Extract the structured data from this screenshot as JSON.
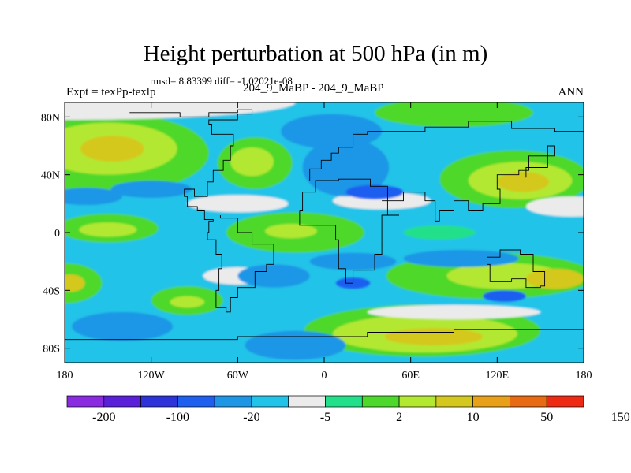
{
  "chart_data": {
    "type": "heatmap",
    "title": "Height perturbation at 500 hPa (in m)",
    "stats_line": "rmsd= 8.83399 diff= -1.02021e-08",
    "left_label": "Expt = texPp-texlp",
    "center_label": "204_9_MaBP - 204_9_MaBP",
    "right_label": "ANN",
    "x_range": [
      -180,
      180
    ],
    "y_range": [
      -90,
      90
    ],
    "x_ticks": [
      {
        "value": -180,
        "label": "180"
      },
      {
        "value": -120,
        "label": "120W"
      },
      {
        "value": -60,
        "label": "60W"
      },
      {
        "value": 0,
        "label": "0"
      },
      {
        "value": 60,
        "label": "60E"
      },
      {
        "value": 120,
        "label": "120E"
      },
      {
        "value": 180,
        "label": "180"
      }
    ],
    "y_ticks": [
      {
        "value": 80,
        "label": "80N"
      },
      {
        "value": 40,
        "label": "40N"
      },
      {
        "value": 0,
        "label": "0"
      },
      {
        "value": -40,
        "label": "40S"
      },
      {
        "value": -80,
        "label": "80S"
      }
    ],
    "colorbar": {
      "bins": [
        {
          "color": "#8a2be2"
        },
        {
          "color": "#5a1fd8"
        },
        {
          "color": "#2d33d8"
        },
        {
          "color": "#1f5ff0"
        },
        {
          "color": "#1e96e6"
        },
        {
          "color": "#22c3e8"
        },
        {
          "color": "#ebebeb"
        },
        {
          "color": "#22e08a"
        },
        {
          "color": "#4ed82c"
        },
        {
          "color": "#b2e830"
        },
        {
          "color": "#d4c81e"
        },
        {
          "color": "#e8a018"
        },
        {
          "color": "#e86a12"
        },
        {
          "color": "#ee2a14"
        }
      ],
      "labels": [
        {
          "boundary": 1,
          "text": "-200"
        },
        {
          "boundary": 3,
          "text": "-100"
        },
        {
          "boundary": 5,
          "text": "-20"
        },
        {
          "boundary": 7,
          "text": "-5"
        },
        {
          "boundary": 9,
          "text": "2"
        },
        {
          "boundary": 11,
          "text": "10"
        },
        {
          "boundary": 13,
          "text": "50"
        },
        {
          "boundary": 15,
          "text": "150"
        }
      ]
    },
    "regions": [
      {
        "lon": 0,
        "lat": 0,
        "rx": 360,
        "ry": 180,
        "color": "#22c3e8"
      },
      {
        "lon": -150,
        "lat": 55,
        "rx": 70,
        "ry": 28,
        "color": "#4ed82c"
      },
      {
        "lon": -150,
        "lat": 58,
        "rx": 48,
        "ry": 18,
        "color": "#b2e830"
      },
      {
        "lon": -147,
        "lat": 58,
        "rx": 22,
        "ry": 9,
        "color": "#d4c81e"
      },
      {
        "lon": -48,
        "lat": 48,
        "rx": 26,
        "ry": 18,
        "color": "#4ed82c"
      },
      {
        "lon": -50,
        "lat": 49,
        "rx": 15,
        "ry": 10,
        "color": "#b2e830"
      },
      {
        "lon": 90,
        "lat": 83,
        "rx": 55,
        "ry": 10,
        "color": "#4ed82c"
      },
      {
        "lon": 132,
        "lat": 37,
        "rx": 52,
        "ry": 20,
        "color": "#4ed82c"
      },
      {
        "lon": 136,
        "lat": 36,
        "rx": 36,
        "ry": 13,
        "color": "#b2e830"
      },
      {
        "lon": 138,
        "lat": 35,
        "rx": 18,
        "ry": 7,
        "color": "#d4c81e"
      },
      {
        "lon": -20,
        "lat": 0,
        "rx": 48,
        "ry": 14,
        "color": "#4ed82c"
      },
      {
        "lon": -23,
        "lat": 1,
        "rx": 18,
        "ry": 5,
        "color": "#b2e830"
      },
      {
        "lon": -180,
        "lat": -35,
        "rx": 26,
        "ry": 14,
        "color": "#4ed82c"
      },
      {
        "lon": -176,
        "lat": -35,
        "rx": 10,
        "ry": 6,
        "color": "#d4c81e"
      },
      {
        "lon": -95,
        "lat": -47,
        "rx": 25,
        "ry": 10,
        "color": "#4ed82c"
      },
      {
        "lon": -95,
        "lat": -48,
        "rx": 12,
        "ry": 4,
        "color": "#b2e830"
      },
      {
        "lon": -150,
        "lat": 3,
        "rx": 35,
        "ry": 10,
        "color": "#4ed82c"
      },
      {
        "lon": -150,
        "lat": 2,
        "rx": 20,
        "ry": 5,
        "color": "#b2e830"
      },
      {
        "lon": 68,
        "lat": -68,
        "rx": 82,
        "ry": 18,
        "color": "#4ed82c"
      },
      {
        "lon": 70,
        "lat": -70,
        "rx": 64,
        "ry": 13,
        "color": "#b2e830"
      },
      {
        "lon": 76,
        "lat": -72,
        "rx": 34,
        "ry": 6,
        "color": "#d4c81e"
      },
      {
        "lon": 115,
        "lat": -30,
        "rx": 72,
        "ry": 16,
        "color": "#4ed82c"
      },
      {
        "lon": 125,
        "lat": -30,
        "rx": 40,
        "ry": 9,
        "color": "#b2e830"
      },
      {
        "lon": 160,
        "lat": -32,
        "rx": 20,
        "ry": 7,
        "color": "#d4c81e"
      },
      {
        "lon": 80,
        "lat": 0,
        "rx": 25,
        "ry": 5,
        "color": "#22e08a"
      },
      {
        "lon": 40,
        "lat": 22,
        "rx": 34,
        "ry": 6,
        "color": "#ebebeb"
      },
      {
        "lon": 172,
        "lat": 18,
        "rx": 32,
        "ry": 7,
        "color": "#ebebeb"
      },
      {
        "lon": -60,
        "lat": 20,
        "rx": 35,
        "ry": 6,
        "color": "#ebebeb"
      },
      {
        "lon": -180,
        "lat": 90,
        "rx": 160,
        "ry": 12,
        "color": "#ebebeb"
      },
      {
        "lon": -60,
        "lat": -30,
        "rx": 24,
        "ry": 6,
        "color": "#ebebeb"
      },
      {
        "lon": 90,
        "lat": -55,
        "rx": 60,
        "ry": 5,
        "color": "#ebebeb"
      },
      {
        "lon": 15,
        "lat": 45,
        "rx": 30,
        "ry": 20,
        "color": "#1e96e6"
      },
      {
        "lon": 5,
        "lat": 70,
        "rx": 35,
        "ry": 12,
        "color": "#1e96e6"
      },
      {
        "lon": -165,
        "lat": 25,
        "rx": 25,
        "ry": 6,
        "color": "#1e96e6"
      },
      {
        "lon": -120,
        "lat": 30,
        "rx": 28,
        "ry": 6,
        "color": "#1e96e6"
      },
      {
        "lon": -35,
        "lat": -30,
        "rx": 25,
        "ry": 8,
        "color": "#1e96e6"
      },
      {
        "lon": -140,
        "lat": -65,
        "rx": 35,
        "ry": 10,
        "color": "#1e96e6"
      },
      {
        "lon": -20,
        "lat": -78,
        "rx": 35,
        "ry": 10,
        "color": "#1e96e6"
      },
      {
        "lon": 95,
        "lat": -18,
        "rx": 40,
        "ry": 6,
        "color": "#1e96e6"
      },
      {
        "lon": 20,
        "lat": -20,
        "rx": 30,
        "ry": 6,
        "color": "#1e96e6"
      },
      {
        "lon": 20,
        "lat": -35,
        "rx": 12,
        "ry": 4,
        "color": "#1f5ff0"
      },
      {
        "lon": 125,
        "lat": -44,
        "rx": 15,
        "ry": 4,
        "color": "#1f5ff0"
      },
      {
        "lon": 35,
        "lat": 28,
        "rx": 20,
        "ry": 5,
        "color": "#1f5ff0"
      }
    ],
    "coastlines": [
      [
        [
          -135,
          83
        ],
        [
          -100,
          80
        ],
        [
          -80,
          83
        ],
        [
          -60,
          85
        ],
        [
          -50,
          82
        ],
        [
          -60,
          78
        ],
        [
          -80,
          75
        ],
        [
          -78,
          68
        ],
        [
          -63,
          60
        ],
        [
          -65,
          50
        ],
        [
          -70,
          43
        ],
        [
          -77,
          35
        ],
        [
          -81,
          25
        ],
        [
          -90,
          30
        ],
        [
          -97,
          25
        ],
        [
          -95,
          18
        ],
        [
          -88,
          15
        ],
        [
          -83,
          9
        ],
        [
          -77,
          8
        ],
        [
          -80,
          0
        ],
        [
          -81,
          -5
        ],
        [
          -75,
          -15
        ],
        [
          -71,
          -25
        ],
        [
          -73,
          -40
        ],
        [
          -75,
          -52
        ],
        [
          -68,
          -55
        ],
        [
          -65,
          -45
        ],
        [
          -60,
          -38
        ],
        [
          -48,
          -27
        ],
        [
          -40,
          -22
        ],
        [
          -35,
          -8
        ],
        [
          -50,
          0
        ],
        [
          -60,
          10
        ],
        [
          -72,
          12
        ]
      ],
      [
        [
          -10,
          36
        ],
        [
          -10,
          44
        ],
        [
          -2,
          50
        ],
        [
          5,
          55
        ],
        [
          10,
          59
        ],
        [
          20,
          68
        ],
        [
          30,
          70
        ],
        [
          60,
          70
        ],
        [
          70,
          73
        ],
        [
          100,
          77
        ],
        [
          130,
          72
        ],
        [
          160,
          70
        ],
        [
          180,
          67
        ]
      ],
      [
        [
          -17,
          15
        ],
        [
          -15,
          28
        ],
        [
          -6,
          36
        ],
        [
          10,
          37
        ],
        [
          32,
          32
        ],
        [
          44,
          12
        ],
        [
          52,
          12
        ],
        [
          40,
          -5
        ],
        [
          40,
          -15
        ],
        [
          35,
          -26
        ],
        [
          20,
          -35
        ],
        [
          15,
          -25
        ],
        [
          10,
          -5
        ],
        [
          8,
          5
        ],
        [
          -5,
          5
        ],
        [
          -17,
          15
        ]
      ],
      [
        [
          40,
          22
        ],
        [
          55,
          28
        ],
        [
          70,
          22
        ],
        [
          77,
          8
        ],
        [
          80,
          15
        ],
        [
          90,
          22
        ],
        [
          100,
          15
        ],
        [
          110,
          20
        ],
        [
          122,
          30
        ],
        [
          120,
          40
        ],
        [
          135,
          43
        ],
        [
          142,
          53
        ],
        [
          160,
          60
        ],
        [
          155,
          45
        ],
        [
          140,
          38
        ]
      ],
      [
        [
          113,
          -22
        ],
        [
          115,
          -34
        ],
        [
          130,
          -32
        ],
        [
          140,
          -38
        ],
        [
          150,
          -37
        ],
        [
          153,
          -27
        ],
        [
          145,
          -15
        ],
        [
          136,
          -12
        ],
        [
          130,
          -12
        ],
        [
          122,
          -17
        ],
        [
          113,
          -22
        ]
      ],
      [
        [
          -180,
          -74
        ],
        [
          -120,
          -74
        ],
        [
          -60,
          -72
        ],
        [
          -20,
          -72
        ],
        [
          30,
          -69
        ],
        [
          90,
          -67
        ],
        [
          140,
          -67
        ],
        [
          180,
          -75
        ]
      ]
    ]
  }
}
